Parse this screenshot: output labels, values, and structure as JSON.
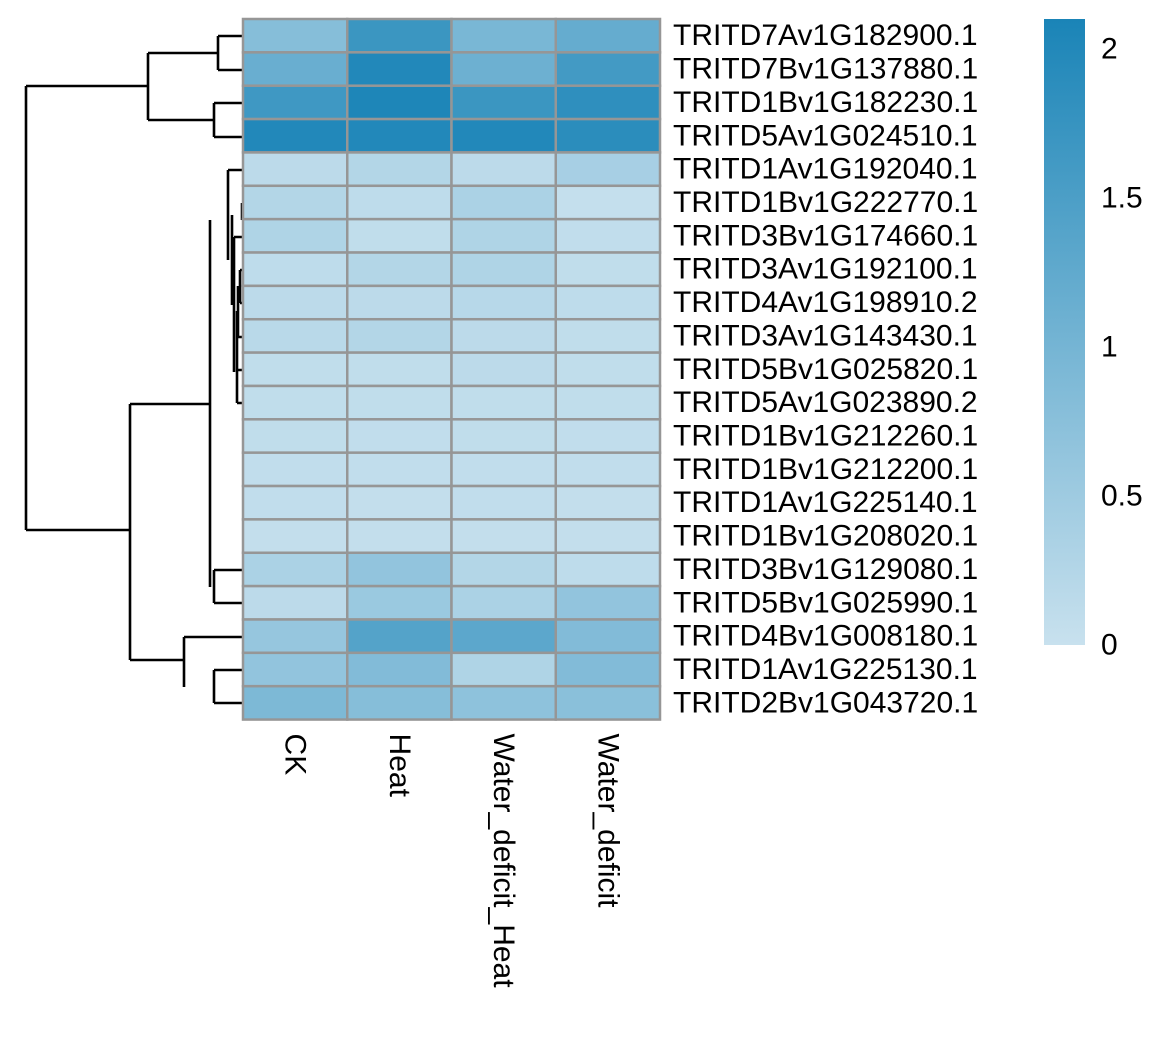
{
  "chart_data": {
    "type": "heatmap",
    "title": "",
    "xlabel": "",
    "ylabel": "",
    "columns": [
      "CK",
      "Heat",
      "Water_deficit_Heat",
      "Water_deficit"
    ],
    "rows": [
      "TRITD7Av1G182900.1",
      "TRITD7Bv1G137880.1",
      "TRITD1Bv1G182230.1",
      "TRITD5Av1G024510.1",
      "TRITD1Av1G192040.1",
      "TRITD1Bv1G222770.1",
      "TRITD3Bv1G174660.1",
      "TRITD3Av1G192100.1",
      "TRITD4Av1G198910.2",
      "TRITD3Av1G143430.1",
      "TRITD5Bv1G025820.1",
      "TRITD5Av1G023890.2",
      "TRITD1Bv1G212260.1",
      "TRITD1Bv1G212200.1",
      "TRITD1Av1G225140.1",
      "TRITD1Bv1G208020.1",
      "TRITD3Bv1G129080.1",
      "TRITD5Bv1G025990.1",
      "TRITD4Bv1G008180.1",
      "TRITD1Av1G225130.1",
      "TRITD2Bv1G043720.1"
    ],
    "values": [
      [
        0.8,
        1.7,
        0.95,
        1.2
      ],
      [
        1.15,
        2.0,
        1.1,
        1.6
      ],
      [
        1.65,
        2.05,
        1.7,
        1.85
      ],
      [
        2.0,
        2.0,
        2.0,
        1.9
      ],
      [
        0.15,
        0.25,
        0.15,
        0.4
      ],
      [
        0.25,
        0.12,
        0.35,
        0.05
      ],
      [
        0.3,
        0.1,
        0.3,
        0.08
      ],
      [
        0.12,
        0.25,
        0.3,
        0.1
      ],
      [
        0.15,
        0.15,
        0.2,
        0.12
      ],
      [
        0.18,
        0.25,
        0.15,
        0.1
      ],
      [
        0.1,
        0.1,
        0.15,
        0.1
      ],
      [
        0.1,
        0.1,
        0.1,
        0.1
      ],
      [
        0.1,
        0.08,
        0.1,
        0.08
      ],
      [
        0.08,
        0.08,
        0.08,
        0.08
      ],
      [
        0.08,
        0.06,
        0.08,
        0.06
      ],
      [
        0.06,
        0.06,
        0.06,
        0.06
      ],
      [
        0.35,
        0.65,
        0.25,
        0.12
      ],
      [
        0.15,
        0.55,
        0.35,
        0.65
      ],
      [
        0.6,
        1.4,
        1.3,
        0.85
      ],
      [
        0.65,
        0.85,
        0.3,
        0.85
      ],
      [
        0.9,
        0.8,
        0.7,
        0.75
      ]
    ],
    "color_scale": {
      "min": 0,
      "max": 2.1,
      "low": "#c8e1ee",
      "high": "#1a84b7"
    },
    "legend": {
      "ticks": [
        0,
        0.5,
        1,
        1.5,
        2
      ],
      "labels": [
        "0",
        "0.5",
        "1",
        "1.5",
        "2"
      ],
      "placement": "right"
    },
    "grid": true,
    "cell_border_color": "#969696",
    "row_dendrogram": true
  }
}
